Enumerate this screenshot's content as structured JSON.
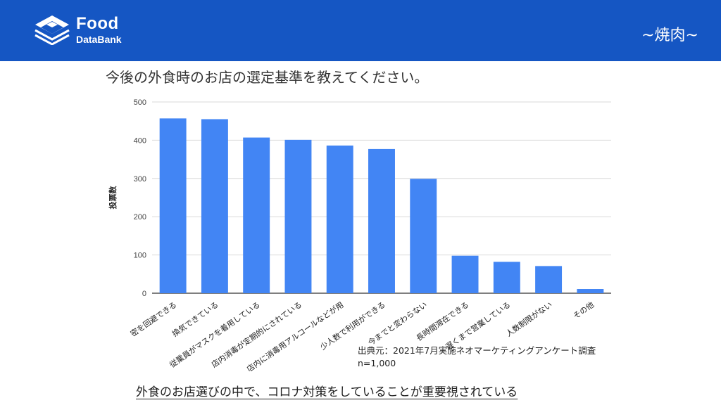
{
  "header": {
    "logo_line1": "Food",
    "logo_line2": "DataBank",
    "tag": "~焼肉~",
    "bg_color": "#1556c3"
  },
  "chart_data": {
    "type": "bar",
    "title": "今後の外食時のお店の選定基準を教えてください。",
    "ylabel": "投票数",
    "xlabel": "",
    "ylim": [
      0,
      500
    ],
    "yticks": [
      0,
      100,
      200,
      300,
      400,
      500
    ],
    "grid": true,
    "bar_color": "#4285f4",
    "categories": [
      "密を回避できる",
      "換気できている",
      "従業員がマスクを着用している",
      "店内消毒が定期的にされている",
      "店内に消毒用アルコールなどが用",
      "少人数で利用ができる",
      "今までと変わらない",
      "長時間滞在できる",
      "遅くまで営業している",
      "人数制限がない",
      "その他"
    ],
    "values": [
      457,
      455,
      407,
      401,
      386,
      377,
      299,
      98,
      82,
      71,
      11
    ]
  },
  "source": {
    "line1": "出典元：2021年7月実施ネオマーケティングアンケート調査",
    "line2": "n=1,000"
  },
  "conclusion": "外食のお店選びの中で、コロナ対策をしていることが重要視されている"
}
